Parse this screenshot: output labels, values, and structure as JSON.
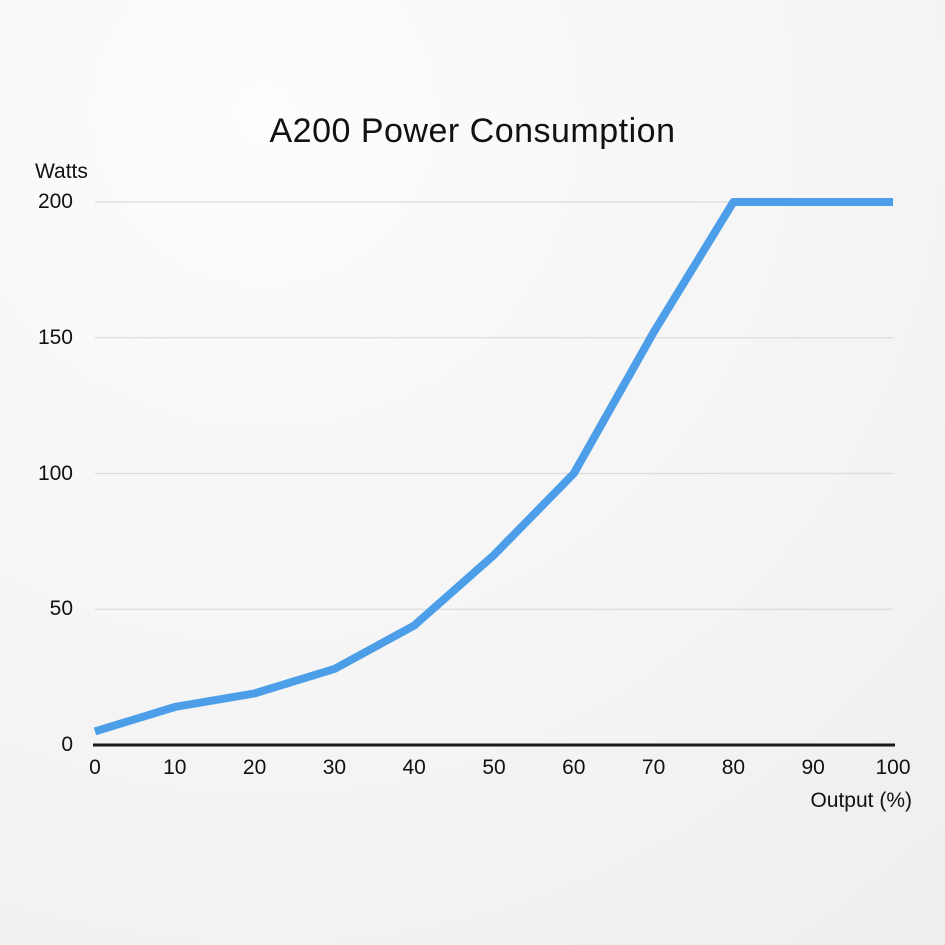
{
  "chart_data": {
    "type": "line",
    "title": "A200 Power Consumption",
    "xlabel": "Output (%)",
    "ylabel": "Watts",
    "x": [
      0,
      10,
      20,
      30,
      40,
      50,
      60,
      70,
      80,
      90,
      100
    ],
    "series": [
      {
        "name": "Power consumption",
        "values": [
          5,
          14,
          19,
          28,
          44,
          70,
          100,
          152,
          200,
          200,
          200
        ]
      }
    ],
    "xticks": [
      0,
      10,
      20,
      30,
      40,
      50,
      60,
      70,
      80,
      90,
      100
    ],
    "yticks": [
      0,
      50,
      100,
      150,
      200
    ],
    "xlim": [
      0,
      100
    ],
    "ylim": [
      0,
      200
    ],
    "grid": "horizontal",
    "legend": "none",
    "line_color": "#4d9ee8",
    "grid_color": "#dcdcdc",
    "axis_color": "#1a1a1a",
    "text_color": "#111111"
  }
}
